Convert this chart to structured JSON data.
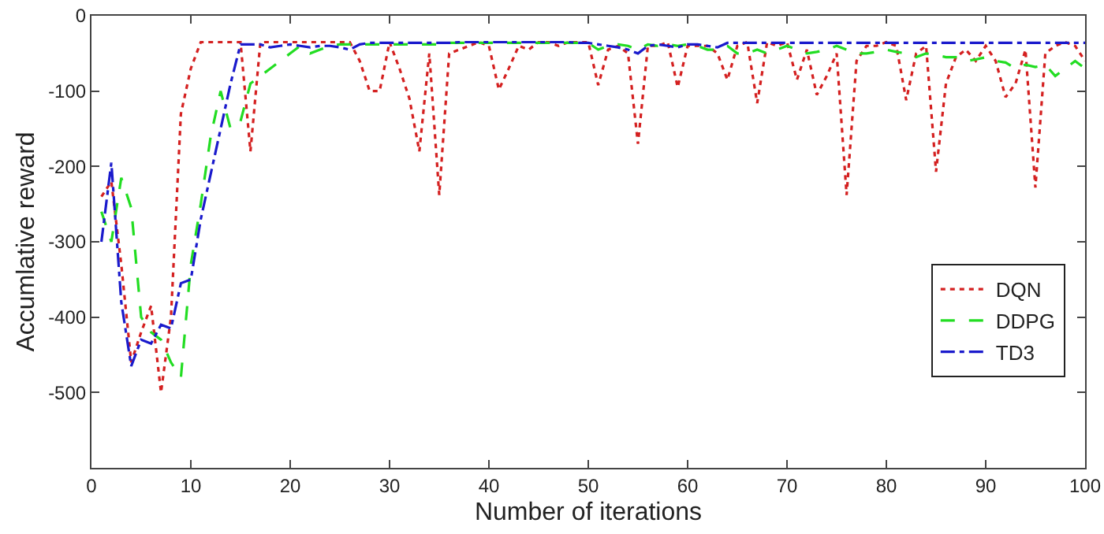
{
  "chart_data": {
    "type": "line",
    "xlabel": "Number of iterations",
    "ylabel": "Accumlative reward",
    "xlim": [
      0,
      100
    ],
    "ylim": [
      -600,
      0
    ],
    "xticks": [
      0,
      10,
      20,
      30,
      40,
      50,
      60,
      70,
      80,
      90,
      100
    ],
    "yticks": [
      -500,
      -400,
      -300,
      -200,
      -100,
      0
    ],
    "grid": false,
    "legend": "bottom right",
    "marker": "none",
    "x": [
      1,
      2,
      3,
      4,
      5,
      6,
      7,
      8,
      9,
      10,
      11,
      12,
      13,
      14,
      15,
      16,
      17,
      18,
      19,
      20,
      21,
      22,
      23,
      24,
      25,
      26,
      27,
      28,
      29,
      30,
      31,
      32,
      33,
      34,
      35,
      36,
      37,
      38,
      39,
      40,
      41,
      42,
      43,
      44,
      45,
      46,
      47,
      48,
      49,
      50,
      51,
      52,
      53,
      54,
      55,
      56,
      57,
      58,
      59,
      60,
      61,
      62,
      63,
      64,
      65,
      66,
      67,
      68,
      69,
      70,
      71,
      72,
      73,
      74,
      75,
      76,
      77,
      78,
      79,
      80,
      81,
      82,
      83,
      84,
      85,
      86,
      87,
      88,
      89,
      90,
      91,
      92,
      93,
      94,
      95,
      96,
      97,
      98,
      99,
      100
    ],
    "series": [
      {
        "name": "DQN",
        "color": "#d42020",
        "line_style": "dotted",
        "values": [
          -240,
          -220,
          -330,
          -460,
          -420,
          -385,
          -500,
          -400,
          -130,
          -70,
          -35,
          -35,
          -35,
          -35,
          -35,
          -180,
          -35,
          -35,
          -35,
          -35,
          -35,
          -35,
          -35,
          -35,
          -35,
          -35,
          -60,
          -100,
          -100,
          -35,
          -70,
          -110,
          -180,
          -50,
          -238,
          -50,
          -45,
          -40,
          -35,
          -40,
          -98,
          -70,
          -40,
          -45,
          -35,
          -35,
          -40,
          -35,
          -35,
          -35,
          -92,
          -45,
          -40,
          -50,
          -170,
          -40,
          -40,
          -35,
          -95,
          -40,
          -40,
          -40,
          -50,
          -85,
          -40,
          -35,
          -116,
          -35,
          -40,
          -35,
          -85,
          -45,
          -105,
          -80,
          -50,
          -238,
          -60,
          -40,
          -40,
          -35,
          -40,
          -112,
          -50,
          -40,
          -207,
          -90,
          -55,
          -45,
          -60,
          -40,
          -60,
          -108,
          -90,
          -45,
          -228,
          -50,
          -40,
          -35,
          -40,
          -60
        ]
      },
      {
        "name": "DDPG",
        "color": "#22dd22",
        "line_style": "dashed",
        "values": [
          -260,
          -300,
          -215,
          -255,
          -400,
          -420,
          -430,
          -460,
          -480,
          -330,
          -250,
          -160,
          -100,
          -150,
          -140,
          -90,
          -80,
          -70,
          -60,
          -50,
          -40,
          -50,
          -45,
          -40,
          -38,
          -38,
          -38,
          -38,
          -38,
          -38,
          -38,
          -38,
          -38,
          -38,
          -38,
          -36,
          -36,
          -36,
          -36,
          -36,
          -36,
          -36,
          -36,
          -36,
          -36,
          -36,
          -36,
          -36,
          -36,
          -36,
          -45,
          -40,
          -38,
          -40,
          -45,
          -38,
          -40,
          -38,
          -40,
          -38,
          -40,
          -45,
          -45,
          -40,
          -50,
          -50,
          -45,
          -50,
          -45,
          -40,
          -45,
          -50,
          -48,
          -45,
          -40,
          -45,
          -50,
          -50,
          -48,
          -45,
          -48,
          -50,
          -55,
          -50,
          -52,
          -55,
          -55,
          -60,
          -58,
          -55,
          -60,
          -62,
          -70,
          -65,
          -68,
          -65,
          -80,
          -70,
          -60,
          -70
        ]
      },
      {
        "name": "TD3",
        "color": "#1a1acc",
        "line_style": "dashdot",
        "values": [
          -300,
          -195,
          -380,
          -465,
          -430,
          -435,
          -410,
          -415,
          -355,
          -350,
          -270,
          -210,
          -150,
          -90,
          -38,
          -38,
          -38,
          -42,
          -40,
          -38,
          -40,
          -42,
          -40,
          -40,
          -42,
          -45,
          -38,
          -36,
          -36,
          -36,
          -36,
          -36,
          -36,
          -36,
          -36,
          -36,
          -35,
          -35,
          -35,
          -35,
          -35,
          -35,
          -35,
          -35,
          -35,
          -35,
          -35,
          -35,
          -36,
          -36,
          -38,
          -40,
          -42,
          -45,
          -50,
          -40,
          -38,
          -40,
          -42,
          -38,
          -38,
          -40,
          -42,
          -36,
          -36,
          -36,
          -36,
          -36,
          -36,
          -36,
          -36,
          -36,
          -36,
          -36,
          -36,
          -36,
          -36,
          -36,
          -36,
          -36,
          -36,
          -36,
          -36,
          -36,
          -36,
          -36,
          -36,
          -36,
          -36,
          -36,
          -36,
          -36,
          -36,
          -36,
          -36,
          -36,
          -36,
          -36,
          -36,
          -36
        ]
      }
    ]
  }
}
